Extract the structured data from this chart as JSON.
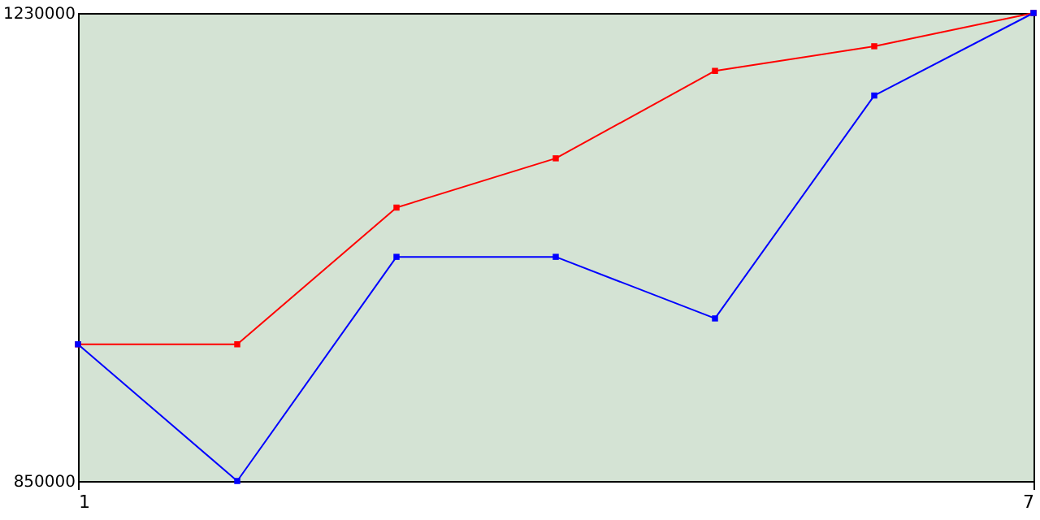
{
  "chart_data": {
    "type": "line",
    "x": [
      1,
      2,
      3,
      4,
      5,
      6,
      7
    ],
    "series": [
      {
        "color": "#ff0000",
        "values": [
          961000,
          961000,
          1072000,
          1112000,
          1183000,
          1203000,
          1230000
        ]
      },
      {
        "color": "#0000ff",
        "values": [
          961000,
          850000,
          1032000,
          1032000,
          982000,
          1163000,
          1230000
        ]
      }
    ],
    "xlim": [
      1,
      7
    ],
    "xticks": [
      1,
      7
    ],
    "ylim": [
      850000,
      1230000
    ],
    "yticks": [
      850000,
      1230000
    ],
    "grid": false,
    "marker": "square",
    "line_style": "solid"
  }
}
